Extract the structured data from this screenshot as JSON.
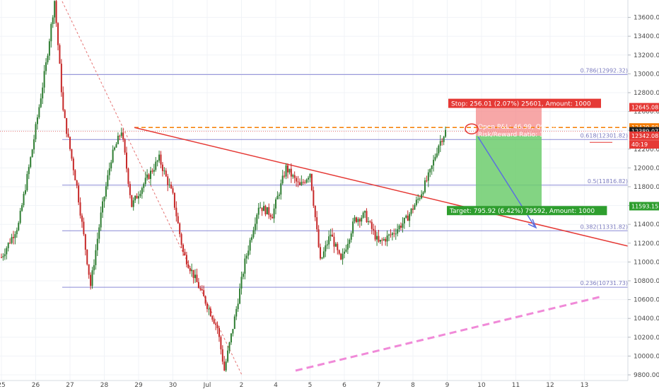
{
  "chart_data": {
    "type": "candlestick",
    "ylim": [
      9800,
      13800
    ],
    "y_ticks": [
      9800,
      10000,
      10200,
      10400,
      10600,
      10800,
      11000,
      11200,
      11400,
      11600,
      11800,
      12000,
      12200,
      12400,
      12600,
      12800,
      13000,
      13200,
      13400,
      13600
    ],
    "x_ticks": [
      {
        "label": "25",
        "idx": 0
      },
      {
        "label": "26",
        "idx": 1
      },
      {
        "label": "27",
        "idx": 2
      },
      {
        "label": "28",
        "idx": 3
      },
      {
        "label": "29",
        "idx": 4
      },
      {
        "label": "30",
        "idx": 5
      },
      {
        "label": "Jul",
        "idx": 6
      },
      {
        "label": "2",
        "idx": 7
      },
      {
        "label": "4",
        "idx": 8
      },
      {
        "label": "5",
        "idx": 9
      },
      {
        "label": "6",
        "idx": 10
      },
      {
        "label": "7",
        "idx": 11
      },
      {
        "label": "8",
        "idx": 12
      },
      {
        "label": "9",
        "idx": 13
      },
      {
        "label": "10",
        "idx": 14
      },
      {
        "label": "11",
        "idx": 15
      },
      {
        "label": "12",
        "idx": 16
      },
      {
        "label": "13",
        "idx": 17
      }
    ],
    "price_path": [
      [
        0,
        11050
      ],
      [
        0.5,
        11400
      ],
      [
        0.9,
        12200
      ],
      [
        1.3,
        13100
      ],
      [
        1.55,
        13780
      ],
      [
        1.8,
        12600
      ],
      [
        2.2,
        11800
      ],
      [
        2.6,
        10750
      ],
      [
        2.9,
        11500
      ],
      [
        3.2,
        12100
      ],
      [
        3.5,
        12400
      ],
      [
        3.8,
        11600
      ],
      [
        4.1,
        11800
      ],
      [
        4.6,
        12100
      ],
      [
        5.0,
        11700
      ],
      [
        5.3,
        11100
      ],
      [
        5.8,
        10700
      ],
      [
        6.3,
        10300
      ],
      [
        6.5,
        9850
      ],
      [
        6.8,
        10400
      ],
      [
        7.1,
        11000
      ],
      [
        7.5,
        11600
      ],
      [
        7.9,
        11500
      ],
      [
        8.3,
        12000
      ],
      [
        8.7,
        11800
      ],
      [
        9.0,
        11950
      ],
      [
        9.3,
        11000
      ],
      [
        9.6,
        11300
      ],
      [
        9.9,
        11000
      ],
      [
        10.3,
        11450
      ],
      [
        10.6,
        11500
      ],
      [
        11.0,
        11200
      ],
      [
        11.4,
        11300
      ],
      [
        11.8,
        11450
      ],
      [
        12.2,
        11700
      ],
      [
        12.5,
        11950
      ],
      [
        12.75,
        12250
      ],
      [
        12.95,
        12389
      ]
    ],
    "fib_levels": [
      {
        "label": "0.786(12992.32)",
        "value": 12992.32
      },
      {
        "label": "0.618(12301.82)",
        "value": 12301.82
      },
      {
        "label": "0.5(11816.82)",
        "value": 11816.82
      },
      {
        "label": "0.382(11331.82)",
        "value": 11331.82
      },
      {
        "label": "0.236(10731.73)",
        "value": 10731.73
      }
    ],
    "position": {
      "stop_label": "Stop: 256.01 (2.07%) 25601, Amount: 1000",
      "pnl_label": "Open P&L: 46.99, Qty: 0",
      "rr_label": "Risk/Reward Ratio: 3.11",
      "target_label": "Target: 795.92 (6.42%) 79592, Amount: 1000",
      "entry": 12342.08,
      "stop": 12645.08,
      "target": 11593.15
    },
    "price_tags": [
      {
        "value": 12645.08,
        "label": "12645.08",
        "color": "#e53935"
      },
      {
        "value": 12429.8,
        "label": "12429.80",
        "color": "#f57c00"
      },
      {
        "value": 12389.07,
        "label": "12389.07",
        "color": "#1e1e1e"
      },
      {
        "value": 12342.08,
        "label": "12342.08",
        "color": "#e53935"
      },
      {
        "value": 12250,
        "label": "40:19",
        "color": "#e53935"
      },
      {
        "value": 11593.15,
        "label": "11593.15",
        "color": "#2e9e2e"
      }
    ],
    "colors": {
      "up": "#2e7d32",
      "down": "#c62828",
      "fib": "#8a8ad6",
      "trendline": "#e53935",
      "orange_dashed": "#f57c00",
      "pink_dashed": "#f08ad8",
      "stop_zone": "#f48a8a",
      "target_zone": "#6dcc6d",
      "projection_arrow": "#5b6fe0"
    }
  }
}
